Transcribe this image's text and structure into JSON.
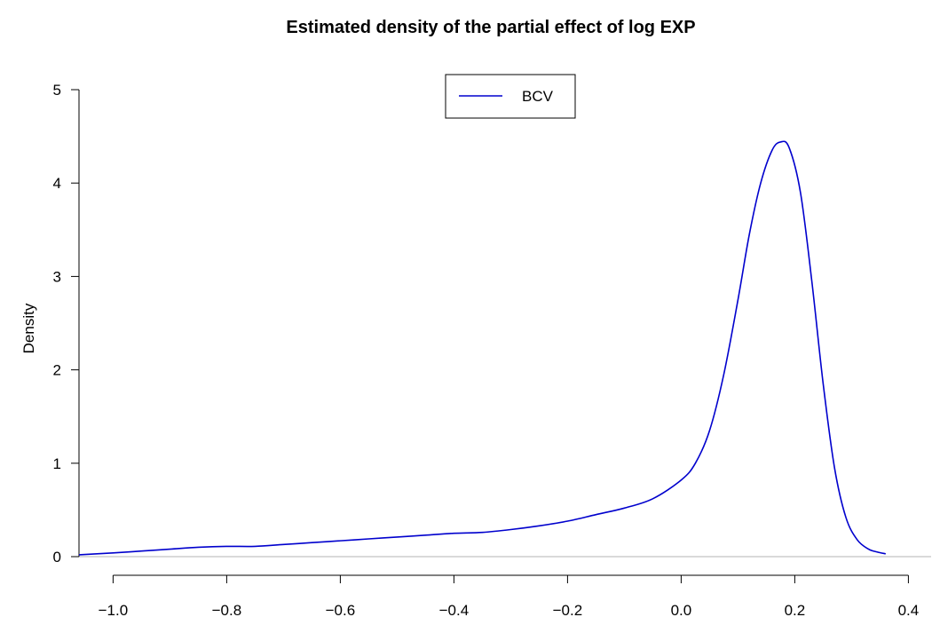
{
  "chart_data": {
    "type": "line",
    "title": "Estimated density of the partial effect of log EXP",
    "xlabel": "",
    "ylabel": "Density",
    "xlim": [
      -1.06,
      0.44
    ],
    "ylim": [
      0,
      5
    ],
    "x_ticks": [
      -1.0,
      -0.8,
      -0.6,
      -0.4,
      -0.2,
      0.0,
      0.2,
      0.4
    ],
    "x_tick_labels": [
      "−1.0",
      "−0.8",
      "−0.6",
      "−0.4",
      "−0.2",
      "0.0",
      "0.2",
      "0.4"
    ],
    "y_ticks": [
      0,
      1,
      2,
      3,
      4,
      5
    ],
    "y_tick_labels": [
      "0",
      "1",
      "2",
      "3",
      "4",
      "5"
    ],
    "zero_line": true,
    "grid": false,
    "legend": {
      "position": "top-center",
      "entries": [
        "BCV"
      ]
    },
    "series": [
      {
        "name": "BCV",
        "color": "#0000CD",
        "x": [
          -1.06,
          -1.0,
          -0.95,
          -0.9,
          -0.85,
          -0.8,
          -0.75,
          -0.7,
          -0.65,
          -0.6,
          -0.55,
          -0.5,
          -0.45,
          -0.4,
          -0.35,
          -0.3,
          -0.25,
          -0.2,
          -0.15,
          -0.1,
          -0.05,
          0.0,
          0.025,
          0.05,
          0.075,
          0.1,
          0.12,
          0.14,
          0.16,
          0.175,
          0.19,
          0.21,
          0.23,
          0.25,
          0.27,
          0.29,
          0.31,
          0.33,
          0.345,
          0.36
        ],
        "y": [
          0.02,
          0.04,
          0.06,
          0.08,
          0.1,
          0.11,
          0.11,
          0.13,
          0.15,
          0.17,
          0.19,
          0.21,
          0.23,
          0.25,
          0.26,
          0.29,
          0.33,
          0.38,
          0.45,
          0.52,
          0.62,
          0.82,
          1.0,
          1.35,
          1.95,
          2.75,
          3.45,
          4.0,
          4.35,
          4.44,
          4.38,
          3.9,
          2.95,
          1.85,
          0.95,
          0.42,
          0.18,
          0.08,
          0.05,
          0.03
        ]
      }
    ]
  }
}
